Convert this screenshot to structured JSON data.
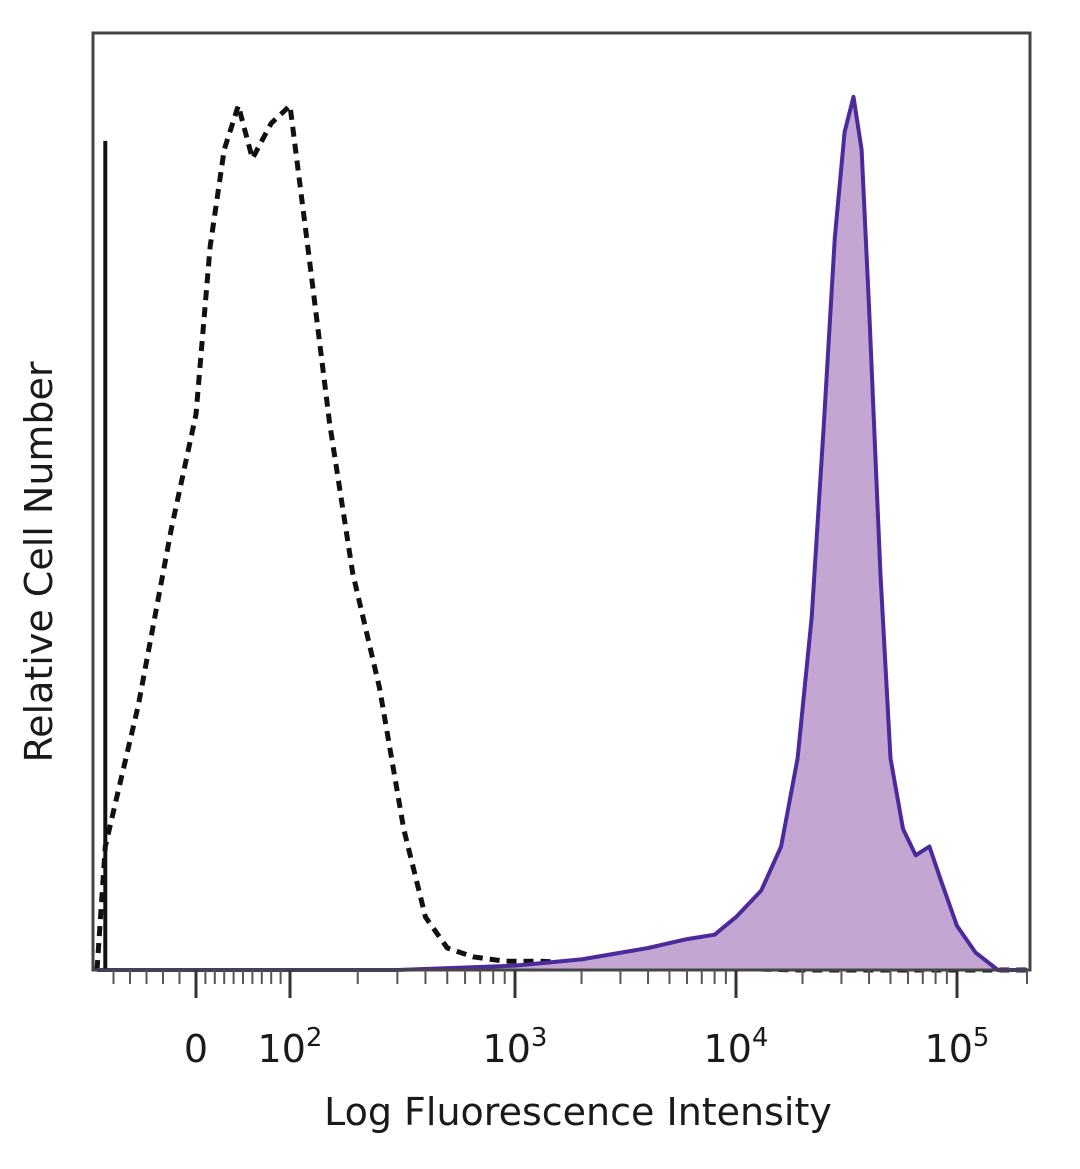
{
  "chart_data": {
    "type": "area",
    "title": "",
    "xlabel": "Log Fluorescence Intensity",
    "ylabel": "Relative Cell Number",
    "x_scale": "biexponential",
    "xlim": [
      -60,
      200000
    ],
    "ylim": [
      0,
      1
    ],
    "grid": false,
    "legend": "none",
    "x_ticks": [
      {
        "value": 0,
        "base": "0",
        "exp": ""
      },
      {
        "value": 100,
        "base": "10",
        "exp": "2"
      },
      {
        "value": 1000,
        "base": "10",
        "exp": "3"
      },
      {
        "value": 10000,
        "base": "10",
        "exp": "4"
      },
      {
        "value": 100000,
        "base": "10",
        "exp": "5"
      }
    ],
    "series": [
      {
        "style": "dashed",
        "color": "#111111",
        "x": [
          -60,
          -55,
          -50,
          -35,
          -15,
          0,
          15,
          30,
          45,
          60,
          80,
          100,
          120,
          150,
          190,
          250,
          320,
          400,
          500,
          650,
          900,
          1300,
          1800,
          2500,
          4000,
          8000,
          20000,
          200000
        ],
        "y": [
          0.0,
          0.14,
          0.18,
          0.3,
          0.5,
          0.63,
          0.82,
          0.93,
          0.98,
          0.92,
          0.96,
          0.98,
          0.82,
          0.62,
          0.45,
          0.32,
          0.16,
          0.06,
          0.025,
          0.015,
          0.01,
          0.01,
          0.008,
          0.006,
          0.004,
          0.002,
          0.0,
          0.0
        ]
      },
      {
        "style": "solid-filled",
        "color": "#4b2a9c",
        "fill": "#c4a6d2",
        "x": [
          -60,
          300,
          1000,
          2000,
          4000,
          6000,
          8000,
          10000,
          13000,
          16000,
          19000,
          22000,
          25000,
          28000,
          31000,
          34000,
          37000,
          40000,
          45000,
          50000,
          57000,
          65000,
          75000,
          85000,
          100000,
          120000,
          150000,
          200000
        ],
        "y": [
          0.0,
          0.0,
          0.005,
          0.012,
          0.025,
          0.035,
          0.04,
          0.06,
          0.09,
          0.14,
          0.24,
          0.4,
          0.62,
          0.83,
          0.95,
          0.99,
          0.93,
          0.75,
          0.45,
          0.24,
          0.16,
          0.13,
          0.14,
          0.1,
          0.05,
          0.02,
          0.0,
          0.0
        ]
      },
      {
        "style": "solid",
        "color": "#111111",
        "x": [
          -55,
          -55
        ],
        "y": [
          0.0,
          0.94
        ]
      }
    ]
  }
}
